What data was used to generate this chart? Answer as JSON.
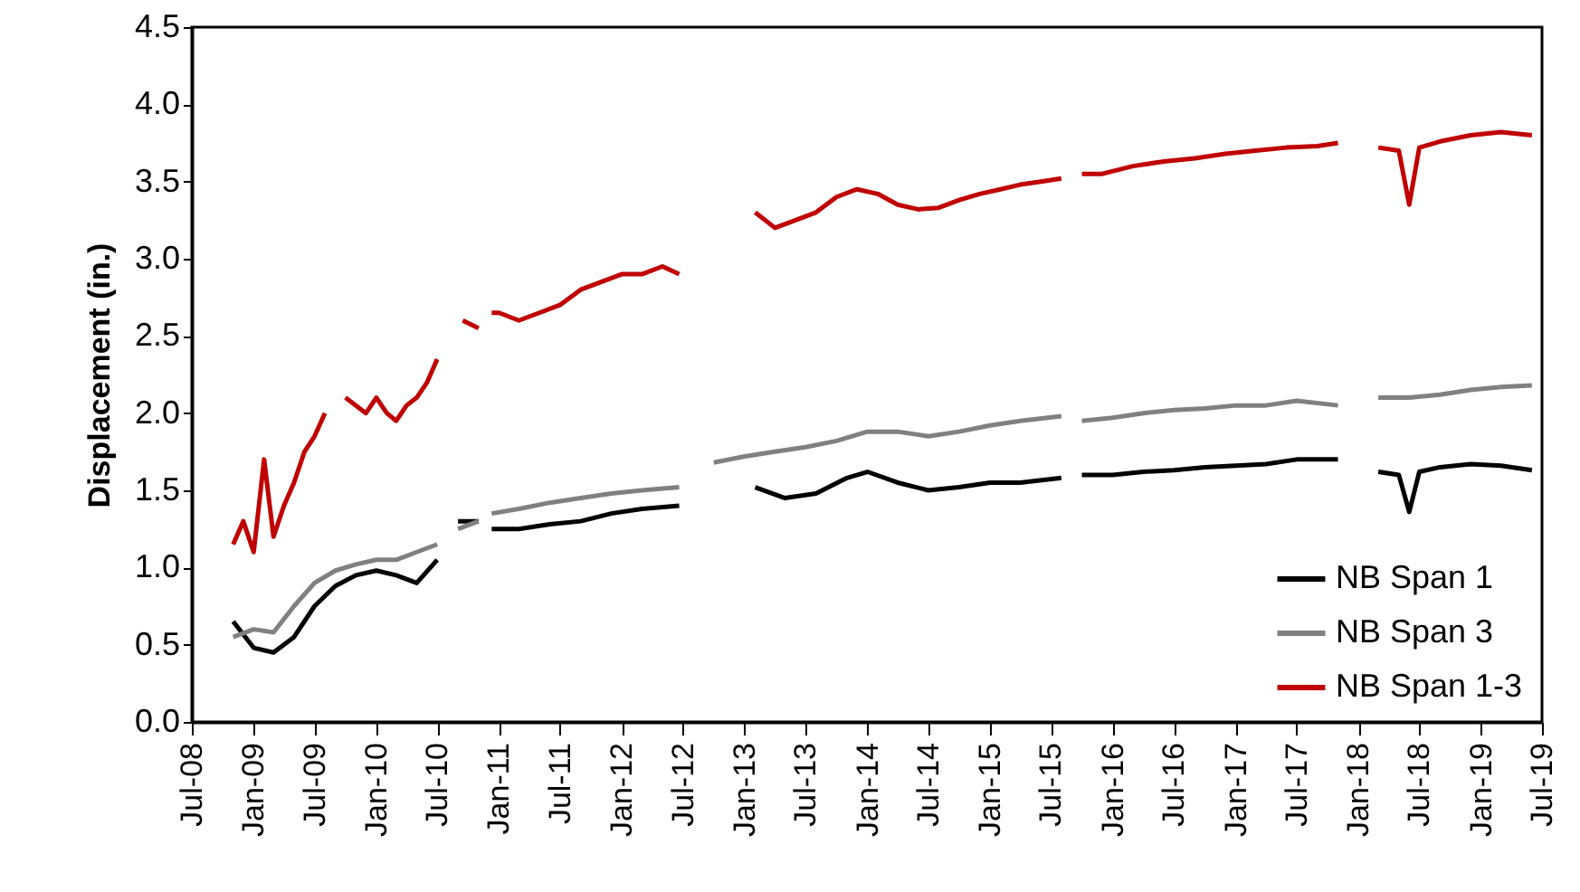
{
  "chart_data": {
    "type": "line",
    "ylabel": "Displacement (in.)",
    "xlim": [
      "2008-07",
      "2019-07"
    ],
    "ylim": [
      0,
      4.5
    ],
    "xticks": [
      {
        "value": "2008-07",
        "label": "Jul-08"
      },
      {
        "value": "2009-01",
        "label": "Jan-09"
      },
      {
        "value": "2009-07",
        "label": "Jul-09"
      },
      {
        "value": "2010-01",
        "label": "Jan-10"
      },
      {
        "value": "2010-07",
        "label": "Jul-10"
      },
      {
        "value": "2011-01",
        "label": "Jan-11"
      },
      {
        "value": "2011-07",
        "label": "Jul-11"
      },
      {
        "value": "2012-01",
        "label": "Jan-12"
      },
      {
        "value": "2012-07",
        "label": "Jul-12"
      },
      {
        "value": "2013-01",
        "label": "Jan-13"
      },
      {
        "value": "2013-07",
        "label": "Jul-13"
      },
      {
        "value": "2014-01",
        "label": "Jan-14"
      },
      {
        "value": "2014-07",
        "label": "Jul-14"
      },
      {
        "value": "2015-01",
        "label": "Jan-15"
      },
      {
        "value": "2015-07",
        "label": "Jul-15"
      },
      {
        "value": "2016-01",
        "label": "Jan-16"
      },
      {
        "value": "2016-07",
        "label": "Jul-16"
      },
      {
        "value": "2017-01",
        "label": "Jan-17"
      },
      {
        "value": "2017-07",
        "label": "Jul-17"
      },
      {
        "value": "2018-01",
        "label": "Jan-18"
      },
      {
        "value": "2018-07",
        "label": "Jul-18"
      },
      {
        "value": "2019-01",
        "label": "Jan-19"
      },
      {
        "value": "2019-07",
        "label": "Jul-19"
      }
    ],
    "yticks": [
      {
        "value": 0,
        "label": "0.0"
      },
      {
        "value": 0.5,
        "label": "0.5"
      },
      {
        "value": 1,
        "label": "1.0"
      },
      {
        "value": 1.5,
        "label": "1.5"
      },
      {
        "value": 2,
        "label": "2.0"
      },
      {
        "value": 2.5,
        "label": "2.5"
      },
      {
        "value": 3,
        "label": "3.0"
      },
      {
        "value": 3.5,
        "label": "3.5"
      },
      {
        "value": 4,
        "label": "4.0"
      },
      {
        "value": 4.5,
        "label": "4.5"
      }
    ],
    "legend": "bottom right",
    "series": [
      {
        "name": "NB Span 1",
        "color": "#000000",
        "x": [
          "2008-11",
          "2009-01",
          "2009-03",
          "2009-05",
          "2009-07",
          "2009-09",
          "2009-11",
          "2010-01",
          "2010-03",
          "2010-05",
          "2010-07",
          "2010-08-10",
          "2010-09",
          "2010-11-01",
          "2010-11-20",
          "2010-12-10",
          "2011-03",
          "2011-06",
          "2011-09",
          "2011-12",
          "2012-03",
          "2012-06-20",
          "2012-08",
          "2013-02",
          "2013-05",
          "2013-08",
          "2013-11",
          "2014-01",
          "2014-04",
          "2014-07",
          "2014-10",
          "2015-01",
          "2015-04",
          "2015-08",
          "2015-09-15",
          "2015-10",
          "2016-01",
          "2016-04",
          "2016-07",
          "2016-10",
          "2017-01",
          "2017-04",
          "2017-07",
          "2017-11",
          "2018-01",
          "2018-03",
          "2018-05",
          "2018-06",
          "2018-07",
          "2018-09",
          "2018-12",
          "2019-03",
          "2019-06"
        ],
        "values": [
          0.65,
          0.48,
          0.45,
          0.55,
          0.75,
          0.88,
          0.95,
          0.98,
          0.95,
          0.9,
          1.05,
          null,
          1.3,
          1.3,
          null,
          1.25,
          1.25,
          1.28,
          1.3,
          1.35,
          1.38,
          1.4,
          null,
          1.52,
          1.45,
          1.48,
          1.58,
          1.62,
          1.55,
          1.5,
          1.52,
          1.55,
          1.55,
          1.58,
          null,
          1.6,
          1.6,
          1.62,
          1.63,
          1.65,
          1.66,
          1.67,
          1.7,
          1.7,
          null,
          1.62,
          1.6,
          1.36,
          1.62,
          1.65,
          1.67,
          1.66,
          1.63
        ]
      },
      {
        "name": "NB Span 3",
        "color": "#808080",
        "x": [
          "2008-11",
          "2009-01",
          "2009-03",
          "2009-05",
          "2009-07",
          "2009-09",
          "2009-11",
          "2010-01",
          "2010-03",
          "2010-05",
          "2010-07",
          "2010-08-10",
          "2010-09",
          "2010-11-01",
          "2010-11-20",
          "2010-12-10",
          "2011-03",
          "2011-06",
          "2011-09",
          "2011-12",
          "2012-03",
          "2012-06-20",
          "2012-08",
          "2012-10",
          "2013-01",
          "2013-04",
          "2013-07",
          "2013-10",
          "2014-01",
          "2014-04",
          "2014-07",
          "2014-10",
          "2015-01",
          "2015-04",
          "2015-08",
          "2015-09-15",
          "2015-10",
          "2016-01",
          "2016-04",
          "2016-07",
          "2016-10",
          "2017-01",
          "2017-04",
          "2017-07",
          "2017-11",
          "2018-01",
          "2018-03",
          "2018-06",
          "2018-09",
          "2018-12",
          "2019-03",
          "2019-06"
        ],
        "values": [
          0.55,
          0.6,
          0.58,
          0.75,
          0.9,
          0.98,
          1.02,
          1.05,
          1.05,
          1.1,
          1.15,
          null,
          1.25,
          1.3,
          null,
          1.35,
          1.38,
          1.42,
          1.45,
          1.48,
          1.5,
          1.52,
          null,
          1.68,
          1.72,
          1.75,
          1.78,
          1.82,
          1.88,
          1.88,
          1.85,
          1.88,
          1.92,
          1.95,
          1.98,
          null,
          1.95,
          1.97,
          2.0,
          2.02,
          2.03,
          2.05,
          2.05,
          2.08,
          2.05,
          null,
          2.1,
          2.1,
          2.12,
          2.15,
          2.17,
          2.18
        ]
      },
      {
        "name": "NB Span 1-3",
        "color": "#c00000",
        "x": [
          "2008-11",
          "2008-12",
          "2009-01",
          "2009-02",
          "2009-03",
          "2009-04",
          "2009-05",
          "2009-06",
          "2009-07",
          "2009-08",
          "2009-09",
          "2009-10",
          "2009-11",
          "2009-12",
          "2010-01",
          "2010-02",
          "2010-03",
          "2010-04",
          "2010-05",
          "2010-06",
          "2010-07",
          "2010-08",
          "2010-09-15",
          "2010-11-01",
          "2010-11-20",
          "2010-12-10",
          "2011-01",
          "2011-03",
          "2011-05",
          "2011-07",
          "2011-09",
          "2011-11",
          "2012-01",
          "2012-03",
          "2012-05",
          "2012-06-20",
          "2012-09",
          "2013-02",
          "2013-04",
          "2013-06",
          "2013-08",
          "2013-10",
          "2013-12",
          "2014-02",
          "2014-04",
          "2014-06",
          "2014-08",
          "2014-10",
          "2014-12",
          "2015-02",
          "2015-04",
          "2015-06",
          "2015-08",
          "2015-09-15",
          "2015-10",
          "2015-12",
          "2016-03",
          "2016-06",
          "2016-09",
          "2016-12",
          "2017-03",
          "2017-06",
          "2017-09",
          "2017-11",
          "2018-01",
          "2018-03",
          "2018-05",
          "2018-06",
          "2018-07",
          "2018-09",
          "2018-12",
          "2019-03",
          "2019-06"
        ],
        "values": [
          1.15,
          1.3,
          1.1,
          1.7,
          1.2,
          1.4,
          1.55,
          1.75,
          1.85,
          2.0,
          null,
          2.1,
          2.05,
          2.0,
          2.1,
          2.0,
          1.95,
          2.05,
          2.1,
          2.2,
          2.35,
          null,
          2.6,
          2.55,
          null,
          2.65,
          2.65,
          2.6,
          2.65,
          2.7,
          2.8,
          2.85,
          2.9,
          2.9,
          2.95,
          2.9,
          null,
          3.3,
          3.2,
          3.25,
          3.3,
          3.4,
          3.45,
          3.42,
          3.35,
          3.32,
          3.33,
          3.38,
          3.42,
          3.45,
          3.48,
          3.5,
          3.52,
          null,
          3.55,
          3.55,
          3.6,
          3.63,
          3.65,
          3.68,
          3.7,
          3.72,
          3.73,
          3.75,
          null,
          3.72,
          3.7,
          3.35,
          3.72,
          3.76,
          3.8,
          3.82,
          3.8
        ]
      }
    ]
  }
}
